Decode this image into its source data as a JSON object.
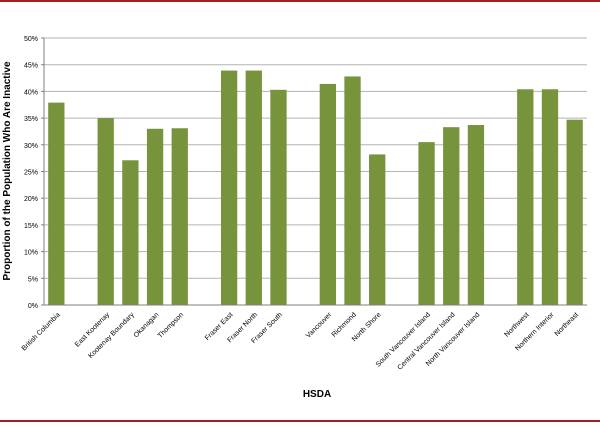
{
  "accent_color": "#a31f24",
  "bar_color": "#77933c",
  "grid_color": "#b3b3b3",
  "chart_data": {
    "type": "bar",
    "title": "",
    "xlabel": "HSDA",
    "ylabel": "Proportion of the Population Who Are Inactive",
    "ylim": [
      0,
      50
    ],
    "y_ticks": [
      "0%",
      "5%",
      "10%",
      "15%",
      "20%",
      "25%",
      "30%",
      "35%",
      "40%",
      "45%",
      "50%"
    ],
    "grid": true,
    "legend": "none",
    "categories": [
      "British Columbia",
      "",
      "East Kootenay",
      "Kootenay Boundary",
      "Okanagan",
      "Thompson",
      "",
      "Fraser East",
      "Fraser North",
      "Fraser South",
      "",
      "Vancouver",
      "Richmond",
      "North Shore",
      "",
      "South Vancouver Island",
      "Central Vancouver Island",
      "North Vancouver Island",
      "",
      "Northwest",
      "Northern Interior",
      "Northeast"
    ],
    "values": [
      37.9,
      null,
      35.0,
      27.1,
      33.0,
      33.1,
      null,
      43.9,
      43.9,
      40.3,
      null,
      41.4,
      42.8,
      28.2,
      null,
      30.5,
      33.3,
      33.7,
      null,
      40.4,
      40.4,
      34.7
    ]
  }
}
